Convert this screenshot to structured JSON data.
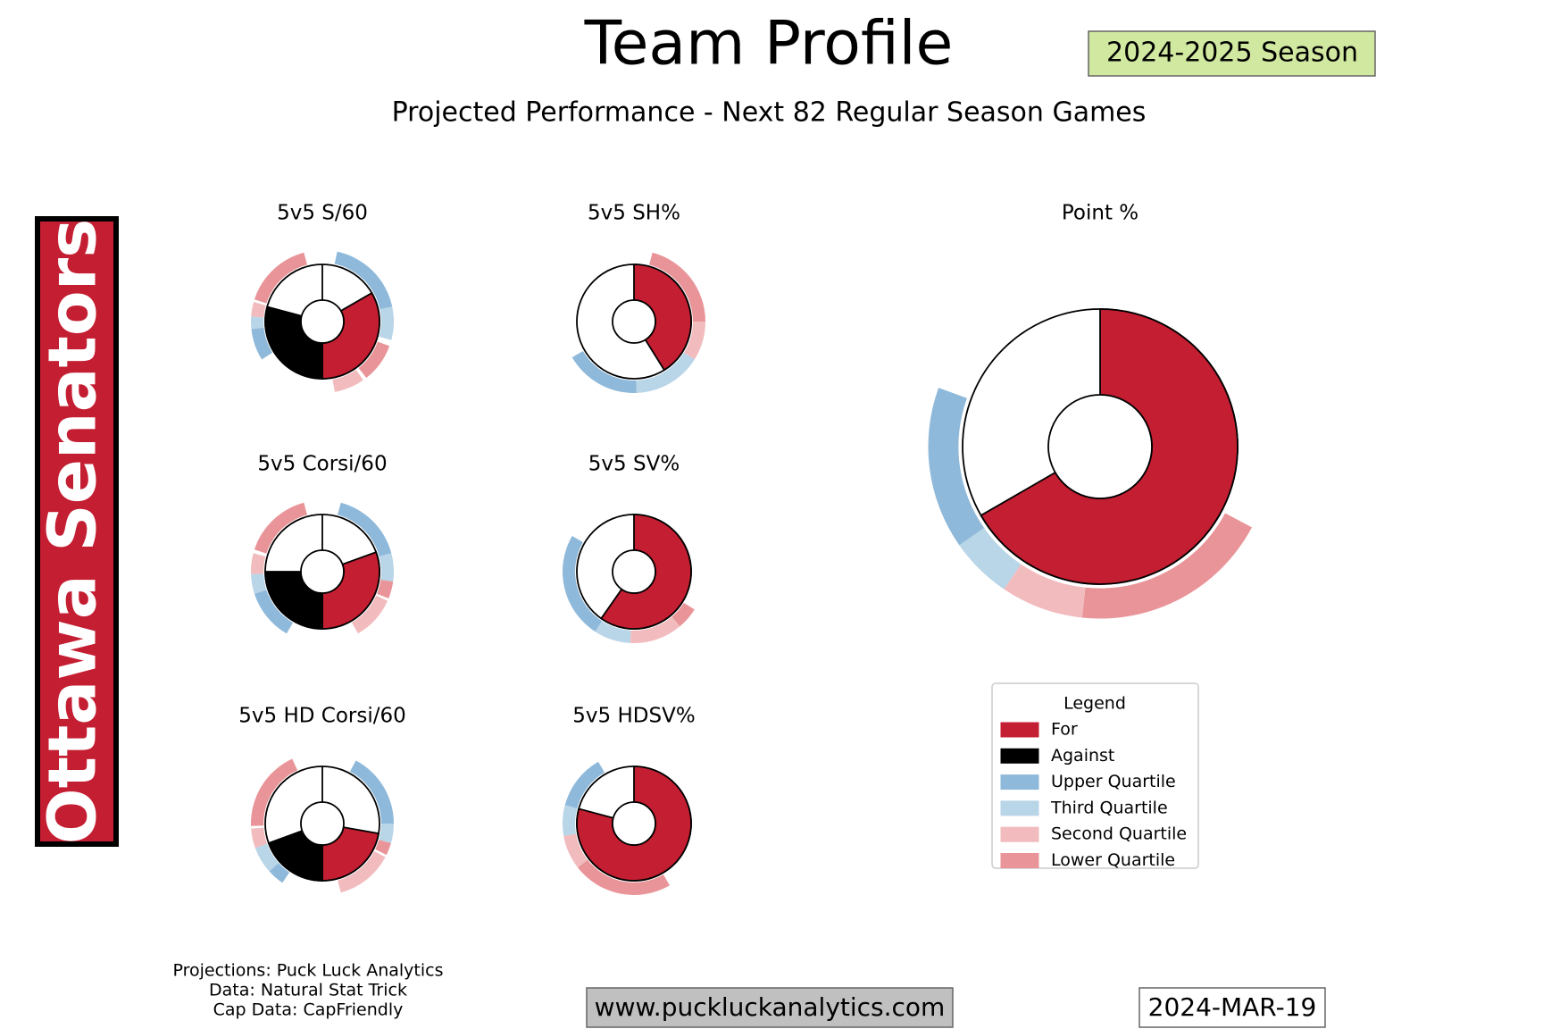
{
  "title": "Team Profile",
  "season": "2024-2025 Season",
  "subtitle": "Projected Performance - Next 82 Regular Season Games",
  "team": "Ottawa Senators",
  "chart_data": {
    "type": "donut",
    "panels": [
      {
        "title": "5v5 S/60",
        "for": 120,
        "against": 105,
        "bands": [
          {
            "item": 2,
            "arc": [
              12,
              78
            ]
          },
          {
            "item": 3,
            "arc": [
              78,
              105
            ]
          },
          {
            "item": 5,
            "arc": [
              110,
              142
            ]
          },
          {
            "item": 4,
            "arc": [
              145,
              170
            ]
          },
          {
            "item": 2,
            "arc": [
              238,
              264
            ]
          },
          {
            "item": 3,
            "arc": [
              264,
              274
            ]
          },
          {
            "item": 4,
            "arc": [
              274,
              286
            ]
          },
          {
            "item": 5,
            "arc": [
              288,
              345
            ]
          }
        ]
      },
      {
        "title": "5v5 SH%",
        "for": 148,
        "bands": [
          {
            "item": 5,
            "arc": [
              15,
              90
            ]
          },
          {
            "item": 4,
            "arc": [
              90,
              122
            ]
          },
          {
            "item": 3,
            "arc": [
              122,
              178
            ]
          },
          {
            "item": 2,
            "arc": [
              178,
              240
            ]
          }
        ]
      },
      {
        "title": "5v5 Corsi/60",
        "for": 110,
        "against": 90,
        "bands": [
          {
            "item": 2,
            "arc": [
              15,
              75
            ]
          },
          {
            "item": 3,
            "arc": [
              75,
              98
            ]
          },
          {
            "item": 5,
            "arc": [
              98,
              112
            ]
          },
          {
            "item": 4,
            "arc": [
              114,
              150
            ]
          },
          {
            "item": 2,
            "arc": [
              210,
              252
            ]
          },
          {
            "item": 3,
            "arc": [
              252,
              268
            ]
          },
          {
            "item": 4,
            "arc": [
              268,
              285
            ]
          },
          {
            "item": 5,
            "arc": [
              288,
              345
            ]
          }
        ]
      },
      {
        "title": "5v5 SV%",
        "for": 215,
        "bands": [
          {
            "item": 5,
            "arc": [
              122,
              140
            ]
          },
          {
            "item": 4,
            "arc": [
              140,
              183
            ]
          },
          {
            "item": 3,
            "arc": [
              183,
              213
            ]
          },
          {
            "item": 2,
            "arc": [
              213,
              300
            ]
          }
        ]
      },
      {
        "title": "5v5 HD Corsi/60",
        "for": 80,
        "against": 70,
        "bands": [
          {
            "item": 2,
            "arc": [
              28,
              90
            ]
          },
          {
            "item": 3,
            "arc": [
              90,
              106
            ]
          },
          {
            "item": 5,
            "arc": [
              106,
              116
            ]
          },
          {
            "item": 4,
            "arc": [
              118,
              165
            ]
          },
          {
            "item": 2,
            "arc": [
              214,
              228
            ]
          },
          {
            "item": 3,
            "arc": [
              228,
              250
            ]
          },
          {
            "item": 4,
            "arc": [
              250,
              266
            ]
          },
          {
            "item": 5,
            "arc": [
              268,
              335
            ]
          }
        ]
      },
      {
        "title": "5v5 HDSV%",
        "for": 285,
        "bands": [
          {
            "item": 5,
            "arc": [
              150,
              232
            ]
          },
          {
            "item": 4,
            "arc": [
              232,
              260
            ]
          },
          {
            "item": 3,
            "arc": [
              260,
              285
            ]
          },
          {
            "item": 2,
            "arc": [
              285,
              330
            ]
          }
        ]
      },
      {
        "title": "Point %",
        "for": 240,
        "bands": [
          {
            "item": 5,
            "arc": [
              118,
              186
            ]
          },
          {
            "item": 4,
            "arc": [
              186,
              214
            ]
          },
          {
            "item": 3,
            "arc": [
              214,
              235
            ]
          },
          {
            "item": 2,
            "arc": [
              235,
              290
            ]
          }
        ]
      }
    ],
    "legend": {
      "title": "Legend",
      "items": [
        {
          "name": "For",
          "color": "#c41e32"
        },
        {
          "name": "Against",
          "color": "#000000"
        },
        {
          "name": "Upper Quartile",
          "color": "#8fb9da"
        },
        {
          "name": "Third Quartile",
          "color": "#b9d5e8"
        },
        {
          "name": "Second Quartile",
          "color": "#f2bcbf"
        },
        {
          "name": "Lower Quartile",
          "color": "#e99498"
        }
      ]
    }
  },
  "footer": {
    "credits": [
      "Projections: Puck Luck Analytics",
      "Data: Natural Stat Trick",
      "Cap Data: CapFriendly"
    ],
    "website": "www.puckluckanalytics.com",
    "date": "2024-MAR-19"
  }
}
